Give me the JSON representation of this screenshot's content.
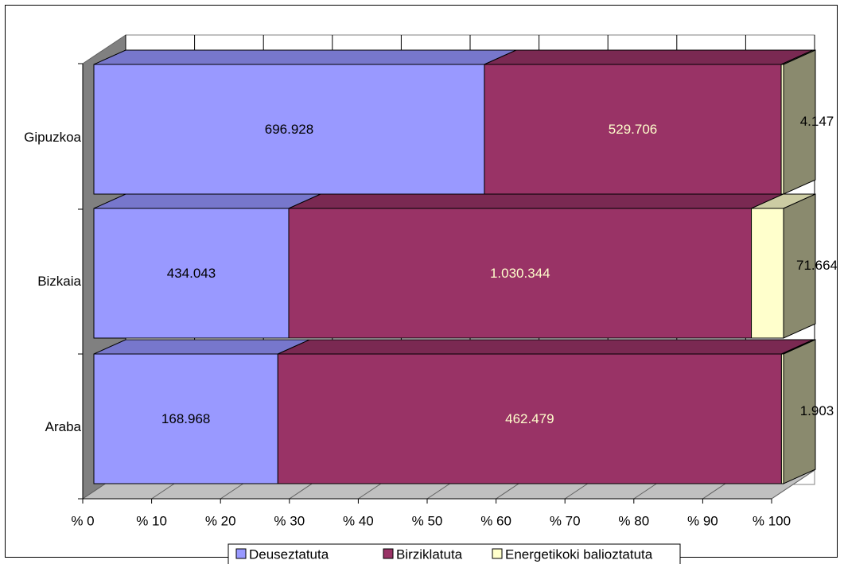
{
  "chart_data": {
    "type": "bar",
    "orientation": "horizontal",
    "stacked": "percent",
    "categories": [
      "Gipuzkoa",
      "Bizkaia",
      "Araba"
    ],
    "series": [
      {
        "name": "Deuseztatuta",
        "values": [
          696928,
          434043,
          168968
        ],
        "labels": [
          "696.928",
          "434.043",
          "168.968"
        ]
      },
      {
        "name": "Birziklatuta",
        "values": [
          529706,
          1030344,
          462479
        ],
        "labels": [
          "529.706",
          "1.030.344",
          "462.479"
        ]
      },
      {
        "name": "Energetikoki balioztatuta",
        "values": [
          4147,
          71664,
          1903
        ],
        "labels": [
          "4.147",
          "71.664",
          "1.903"
        ]
      }
    ],
    "x_ticks": [
      "% 0",
      "% 10",
      "% 20",
      "% 30",
      "% 40",
      "% 50",
      "% 60",
      "% 70",
      "% 80",
      "% 90",
      "% 100"
    ],
    "xlim": [
      0,
      100
    ],
    "legend_position": "bottom",
    "grid": true,
    "colors": {
      "series": [
        "#9999ff",
        "#993366",
        "#ffffcc"
      ],
      "series_top": [
        "#7777cc",
        "#7a2952",
        "#cccca3"
      ],
      "series_side": [
        "#7474c2",
        "#6b2447",
        "#8a8a6e"
      ],
      "value_label": [
        "#000000",
        "#ffffcc",
        "#000000"
      ],
      "wall": "#808080",
      "floor": "#c0c0c0",
      "grid": "#000000"
    }
  }
}
